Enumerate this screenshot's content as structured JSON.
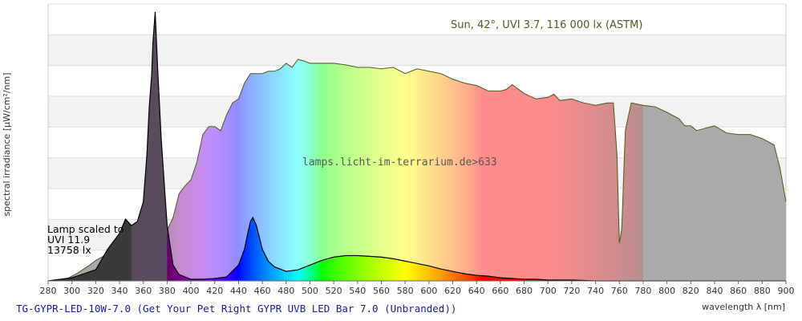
{
  "chart_data": {
    "type": "area",
    "xlabel": "wavelength λ [nm]",
    "ylabel": "spectral irradiance [µW/cm²/nm]",
    "xlim": [
      280,
      900
    ],
    "x_ticks": [
      280,
      300,
      320,
      340,
      360,
      380,
      400,
      420,
      440,
      460,
      480,
      500,
      520,
      540,
      560,
      580,
      600,
      620,
      640,
      660,
      680,
      700,
      720,
      740,
      760,
      780,
      800,
      820,
      840,
      860,
      880,
      900
    ],
    "grid": true,
    "sun_label": "Sun, 42°, UVI 3.7, 116 000 lx (ASTM)",
    "watermark": "lamps.licht-im-terrarium.de>633",
    "lamp_note": [
      "Lamp scaled to",
      "UVI 11.9",
      "13758 lx"
    ],
    "caption": "TG-GYPR-LED-10W-7.0 (Get Your Pet Right GYPR UVB LED Bar 7.0 (Unbranded))",
    "series": [
      {
        "name": "Sun, 42°, UVI 3.7, 116 000 lx (ASTM)",
        "x": [
          290,
          295,
          300,
          305,
          310,
          315,
          320,
          325,
          330,
          335,
          340,
          345,
          350,
          355,
          360,
          365,
          370,
          375,
          380,
          385,
          390,
          395,
          400,
          405,
          410,
          415,
          420,
          425,
          430,
          435,
          440,
          445,
          450,
          455,
          460,
          465,
          470,
          475,
          480,
          485,
          490,
          495,
          500,
          510,
          520,
          530,
          540,
          550,
          560,
          570,
          580,
          590,
          600,
          610,
          620,
          630,
          640,
          650,
          660,
          665,
          670,
          680,
          690,
          700,
          705,
          710,
          720,
          730,
          740,
          750,
          755,
          758,
          760,
          762,
          765,
          770,
          780,
          790,
          800,
          810,
          815,
          820,
          825,
          830,
          840,
          850,
          860,
          870,
          880,
          890,
          895,
          900
        ],
        "y": [
          0,
          2,
          6,
          10,
          15,
          20,
          26,
          30,
          34,
          40,
          42,
          43,
          48,
          50,
          52,
          55,
          56,
          60,
          64,
          80,
          110,
          120,
          128,
          150,
          185,
          195,
          195,
          190,
          210,
          225,
          230,
          250,
          262,
          262,
          262,
          265,
          265,
          268,
          275,
          270,
          280,
          278,
          275,
          275,
          275,
          273,
          270,
          270,
          268,
          270,
          262,
          268,
          265,
          262,
          255,
          250,
          247,
          240,
          240,
          242,
          248,
          237,
          230,
          232,
          236,
          228,
          230,
          225,
          222,
          225,
          225,
          160,
          48,
          65,
          190,
          225,
          222,
          220,
          213,
          205,
          196,
          196,
          190,
          192,
          196,
          187,
          185,
          185,
          180,
          172,
          142,
          100
        ]
      },
      {
        "name": "Lamp",
        "x": [
          280,
          300,
          320,
          330,
          340,
          345,
          350,
          355,
          360,
          363,
          365,
          367,
          368,
          370,
          372,
          375,
          380,
          385,
          390,
          400,
          410,
          420,
          430,
          440,
          445,
          448,
          450,
          452,
          455,
          460,
          465,
          470,
          480,
          490,
          500,
          510,
          520,
          530,
          540,
          550,
          560,
          570,
          580,
          590,
          600,
          610,
          620,
          630,
          640,
          650,
          660,
          670,
          680,
          690,
          700,
          720,
          740,
          760,
          780,
          800,
          820,
          840,
          860,
          880,
          890,
          900
        ],
        "y": [
          0,
          4,
          14,
          40,
          60,
          78,
          70,
          75,
          100,
          160,
          220,
          260,
          300,
          340,
          270,
          180,
          70,
          20,
          8,
          2,
          2,
          3,
          5,
          20,
          40,
          62,
          75,
          80,
          70,
          40,
          25,
          18,
          12,
          14,
          20,
          26,
          30,
          32,
          32,
          31,
          30,
          28,
          25,
          22,
          19,
          15,
          12,
          9,
          7,
          6,
          4,
          3,
          2,
          2,
          1,
          1,
          0,
          0,
          0,
          0,
          0,
          0,
          0,
          0,
          0,
          0
        ]
      }
    ]
  }
}
